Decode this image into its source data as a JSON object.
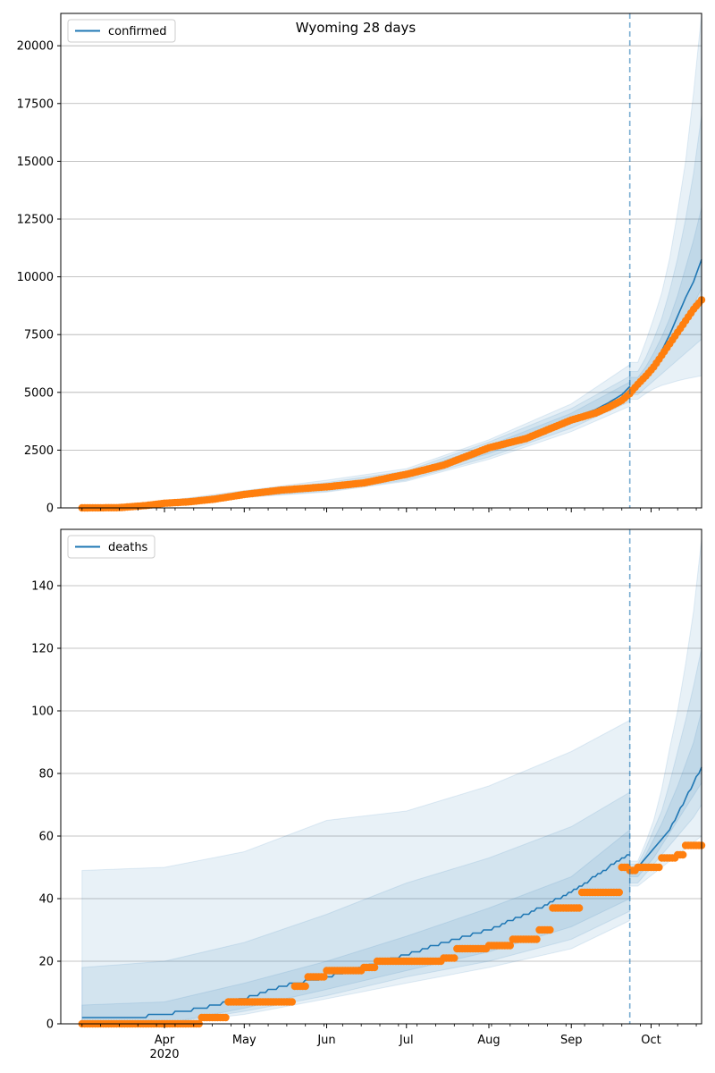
{
  "chart_data": [
    {
      "type": "line",
      "title": "Wyoming 28 days",
      "ylim": [
        0,
        21400
      ],
      "yticks": [
        0,
        2500,
        5000,
        7500,
        10000,
        12500,
        15000,
        17500,
        20000
      ],
      "grid": true,
      "legend": "top-left",
      "forecast_start": "2020-09-23",
      "series": [
        {
          "name": "confirmed",
          "kind": "model-line",
          "color": "#1f77b4",
          "x": [
            "2020-03-01",
            "2020-03-15",
            "2020-04-01",
            "2020-04-15",
            "2020-05-01",
            "2020-05-15",
            "2020-06-01",
            "2020-06-15",
            "2020-07-01",
            "2020-07-15",
            "2020-08-01",
            "2020-08-15",
            "2020-09-01",
            "2020-09-10",
            "2020-09-15",
            "2020-09-20",
            "2020-09-23",
            "2020-09-26",
            "2020-09-29",
            "2020-10-02",
            "2020-10-05",
            "2020-10-08",
            "2020-10-11",
            "2020-10-14",
            "2020-10-17",
            "2020-10-20"
          ],
          "y": [
            0,
            30,
            180,
            340,
            580,
            770,
            900,
            1050,
            1400,
            1800,
            2550,
            3050,
            3900,
            4250,
            4550,
            4900,
            5250,
            5450,
            5800,
            6200,
            6800,
            7500,
            8300,
            9100,
            9800,
            10750
          ]
        },
        {
          "name": "confirmed-observed",
          "kind": "points",
          "color": "#ff7f0e",
          "x": [
            "2020-03-01",
            "2020-03-15",
            "2020-03-25",
            "2020-04-01",
            "2020-04-10",
            "2020-04-20",
            "2020-05-01",
            "2020-05-15",
            "2020-06-01",
            "2020-06-15",
            "2020-07-01",
            "2020-07-15",
            "2020-08-01",
            "2020-08-15",
            "2020-09-01",
            "2020-09-10",
            "2020-09-15",
            "2020-09-20",
            "2020-09-23",
            "2020-09-26",
            "2020-09-29",
            "2020-10-02",
            "2020-10-05",
            "2020-10-08",
            "2020-10-11",
            "2020-10-14",
            "2020-10-17",
            "2020-10-20"
          ],
          "y": [
            0,
            10,
            100,
            200,
            260,
            380,
            580,
            770,
            910,
            1080,
            1450,
            1850,
            2600,
            3000,
            3800,
            4100,
            4350,
            4650,
            4950,
            5350,
            5700,
            6100,
            6600,
            7100,
            7600,
            8100,
            8600,
            9000
          ]
        }
      ],
      "bands": {
        "x": [
          "2020-03-01",
          "2020-04-01",
          "2020-05-01",
          "2020-06-01",
          "2020-07-01",
          "2020-08-01",
          "2020-09-01",
          "2020-09-23",
          "2020-09-26",
          "2020-09-29",
          "2020-10-02",
          "2020-10-05",
          "2020-10-08",
          "2020-10-11",
          "2020-10-14",
          "2020-10-17",
          "2020-10-20"
        ],
        "outer_lo": [
          0,
          150,
          450,
          680,
          1150,
          2100,
          3300,
          4400,
          4700,
          4950,
          5150,
          5300,
          5400,
          5500,
          5580,
          5650,
          5720
        ],
        "outer_hi": [
          0,
          300,
          750,
          1200,
          1700,
          2950,
          4500,
          6200,
          6300,
          7200,
          8200,
          9300,
          10800,
          12800,
          15000,
          18000,
          21400
        ],
        "mid_lo": [
          0,
          160,
          480,
          720,
          1200,
          2200,
          3450,
          4600,
          4900,
          5200,
          5500,
          5800,
          6100,
          6400,
          6700,
          7000,
          7300
        ],
        "mid_hi": [
          0,
          260,
          700,
          1100,
          1600,
          2850,
          4300,
          5700,
          5900,
          6500,
          7300,
          8200,
          9400,
          10800,
          12500,
          14500,
          17000
        ],
        "inner_lo": [
          0,
          170,
          520,
          800,
          1300,
          2350,
          3650,
          4850,
          5200,
          5550,
          5950,
          6400,
          6900,
          7500,
          8100,
          8800,
          9500
        ],
        "inner_hi": [
          0,
          220,
          640,
          1000,
          1500,
          2700,
          4100,
          5450,
          5650,
          6100,
          6700,
          7400,
          8200,
          9200,
          10400,
          11600,
          13000
        ]
      }
    },
    {
      "type": "line",
      "ylim": [
        0,
        158
      ],
      "yticks": [
        0,
        20,
        40,
        60,
        80,
        100,
        120,
        140
      ],
      "grid": true,
      "legend": "top-left",
      "forecast_start": "2020-09-23",
      "xticks": [
        {
          "date": "2020-04-01",
          "label": "Apr",
          "sublabel": "2020"
        },
        {
          "date": "2020-05-01",
          "label": "May"
        },
        {
          "date": "2020-06-01",
          "label": "Jun"
        },
        {
          "date": "2020-07-01",
          "label": "Jul"
        },
        {
          "date": "2020-08-01",
          "label": "Aug"
        },
        {
          "date": "2020-09-01",
          "label": "Sep"
        },
        {
          "date": "2020-10-01",
          "label": "Oct"
        }
      ],
      "series": [
        {
          "name": "deaths",
          "kind": "model-line",
          "color": "#1f77b4",
          "x": [
            "2020-03-01",
            "2020-03-20",
            "2020-04-01",
            "2020-04-15",
            "2020-05-01",
            "2020-05-15",
            "2020-06-01",
            "2020-06-15",
            "2020-07-01",
            "2020-07-15",
            "2020-08-01",
            "2020-08-15",
            "2020-09-01",
            "2020-09-15",
            "2020-09-23",
            "2020-09-26",
            "2020-09-29",
            "2020-10-02",
            "2020-10-05",
            "2020-10-08",
            "2020-10-11",
            "2020-10-14",
            "2020-10-17",
            "2020-10-20"
          ],
          "y": [
            2,
            2,
            3,
            5,
            8,
            12,
            15,
            18,
            22,
            26,
            30,
            35,
            42,
            50,
            54,
            50,
            53,
            56,
            59,
            62,
            67,
            72,
            77,
            82
          ]
        },
        {
          "name": "deaths-observed",
          "kind": "points",
          "color": "#ff7f0e",
          "x": [
            "2020-03-01",
            "2020-04-10",
            "2020-04-15",
            "2020-04-20",
            "2020-04-25",
            "2020-05-10",
            "2020-05-15",
            "2020-05-20",
            "2020-05-25",
            "2020-06-01",
            "2020-06-15",
            "2020-06-20",
            "2020-07-01",
            "2020-07-15",
            "2020-07-20",
            "2020-08-01",
            "2020-08-10",
            "2020-08-20",
            "2020-08-25",
            "2020-09-01",
            "2020-09-05",
            "2020-09-15",
            "2020-09-20",
            "2020-09-23",
            "2020-09-26",
            "2020-09-29",
            "2020-10-02",
            "2020-10-05",
            "2020-10-08",
            "2020-10-11",
            "2020-10-14",
            "2020-10-17",
            "2020-10-20"
          ],
          "y": [
            0,
            0,
            2,
            2,
            7,
            7,
            7,
            12,
            15,
            17,
            18,
            20,
            20,
            21,
            24,
            25,
            27,
            30,
            37,
            37,
            42,
            42,
            50,
            49,
            50,
            50,
            50,
            53,
            53,
            54,
            57,
            57,
            57
          ]
        }
      ],
      "bands": {
        "x": [
          "2020-03-01",
          "2020-04-01",
          "2020-05-01",
          "2020-06-01",
          "2020-07-01",
          "2020-08-01",
          "2020-09-01",
          "2020-09-23",
          "2020-09-26",
          "2020-09-29",
          "2020-10-02",
          "2020-10-05",
          "2020-10-08",
          "2020-10-11",
          "2020-10-14",
          "2020-10-17",
          "2020-10-20"
        ],
        "outer_lo": [
          0,
          0,
          3,
          8,
          13,
          18,
          24,
          33,
          44,
          46,
          48,
          50,
          52,
          54,
          56,
          58,
          60
        ],
        "outer_hi": [
          49,
          50,
          55,
          65,
          68,
          76,
          87,
          97,
          52,
          58,
          65,
          75,
          88,
          100,
          115,
          132,
          155
        ],
        "mid_lo": [
          0,
          0,
          4,
          9,
          15,
          20,
          27,
          36,
          45,
          48,
          51,
          54,
          57,
          60,
          63,
          66,
          70
        ],
        "mid_hi": [
          18,
          20,
          26,
          35,
          45,
          53,
          63,
          74,
          51,
          56,
          62,
          68,
          77,
          87,
          97,
          108,
          120
        ],
        "inner_lo": [
          0,
          0,
          5,
          11,
          17,
          23,
          31,
          40,
          47,
          50,
          53,
          57,
          61,
          65,
          69,
          73,
          77
        ],
        "inner_hi": [
          6,
          7,
          13,
          20,
          28,
          37,
          47,
          62,
          50,
          54,
          59,
          64,
          70,
          76,
          83,
          90,
          100
        ]
      }
    }
  ]
}
